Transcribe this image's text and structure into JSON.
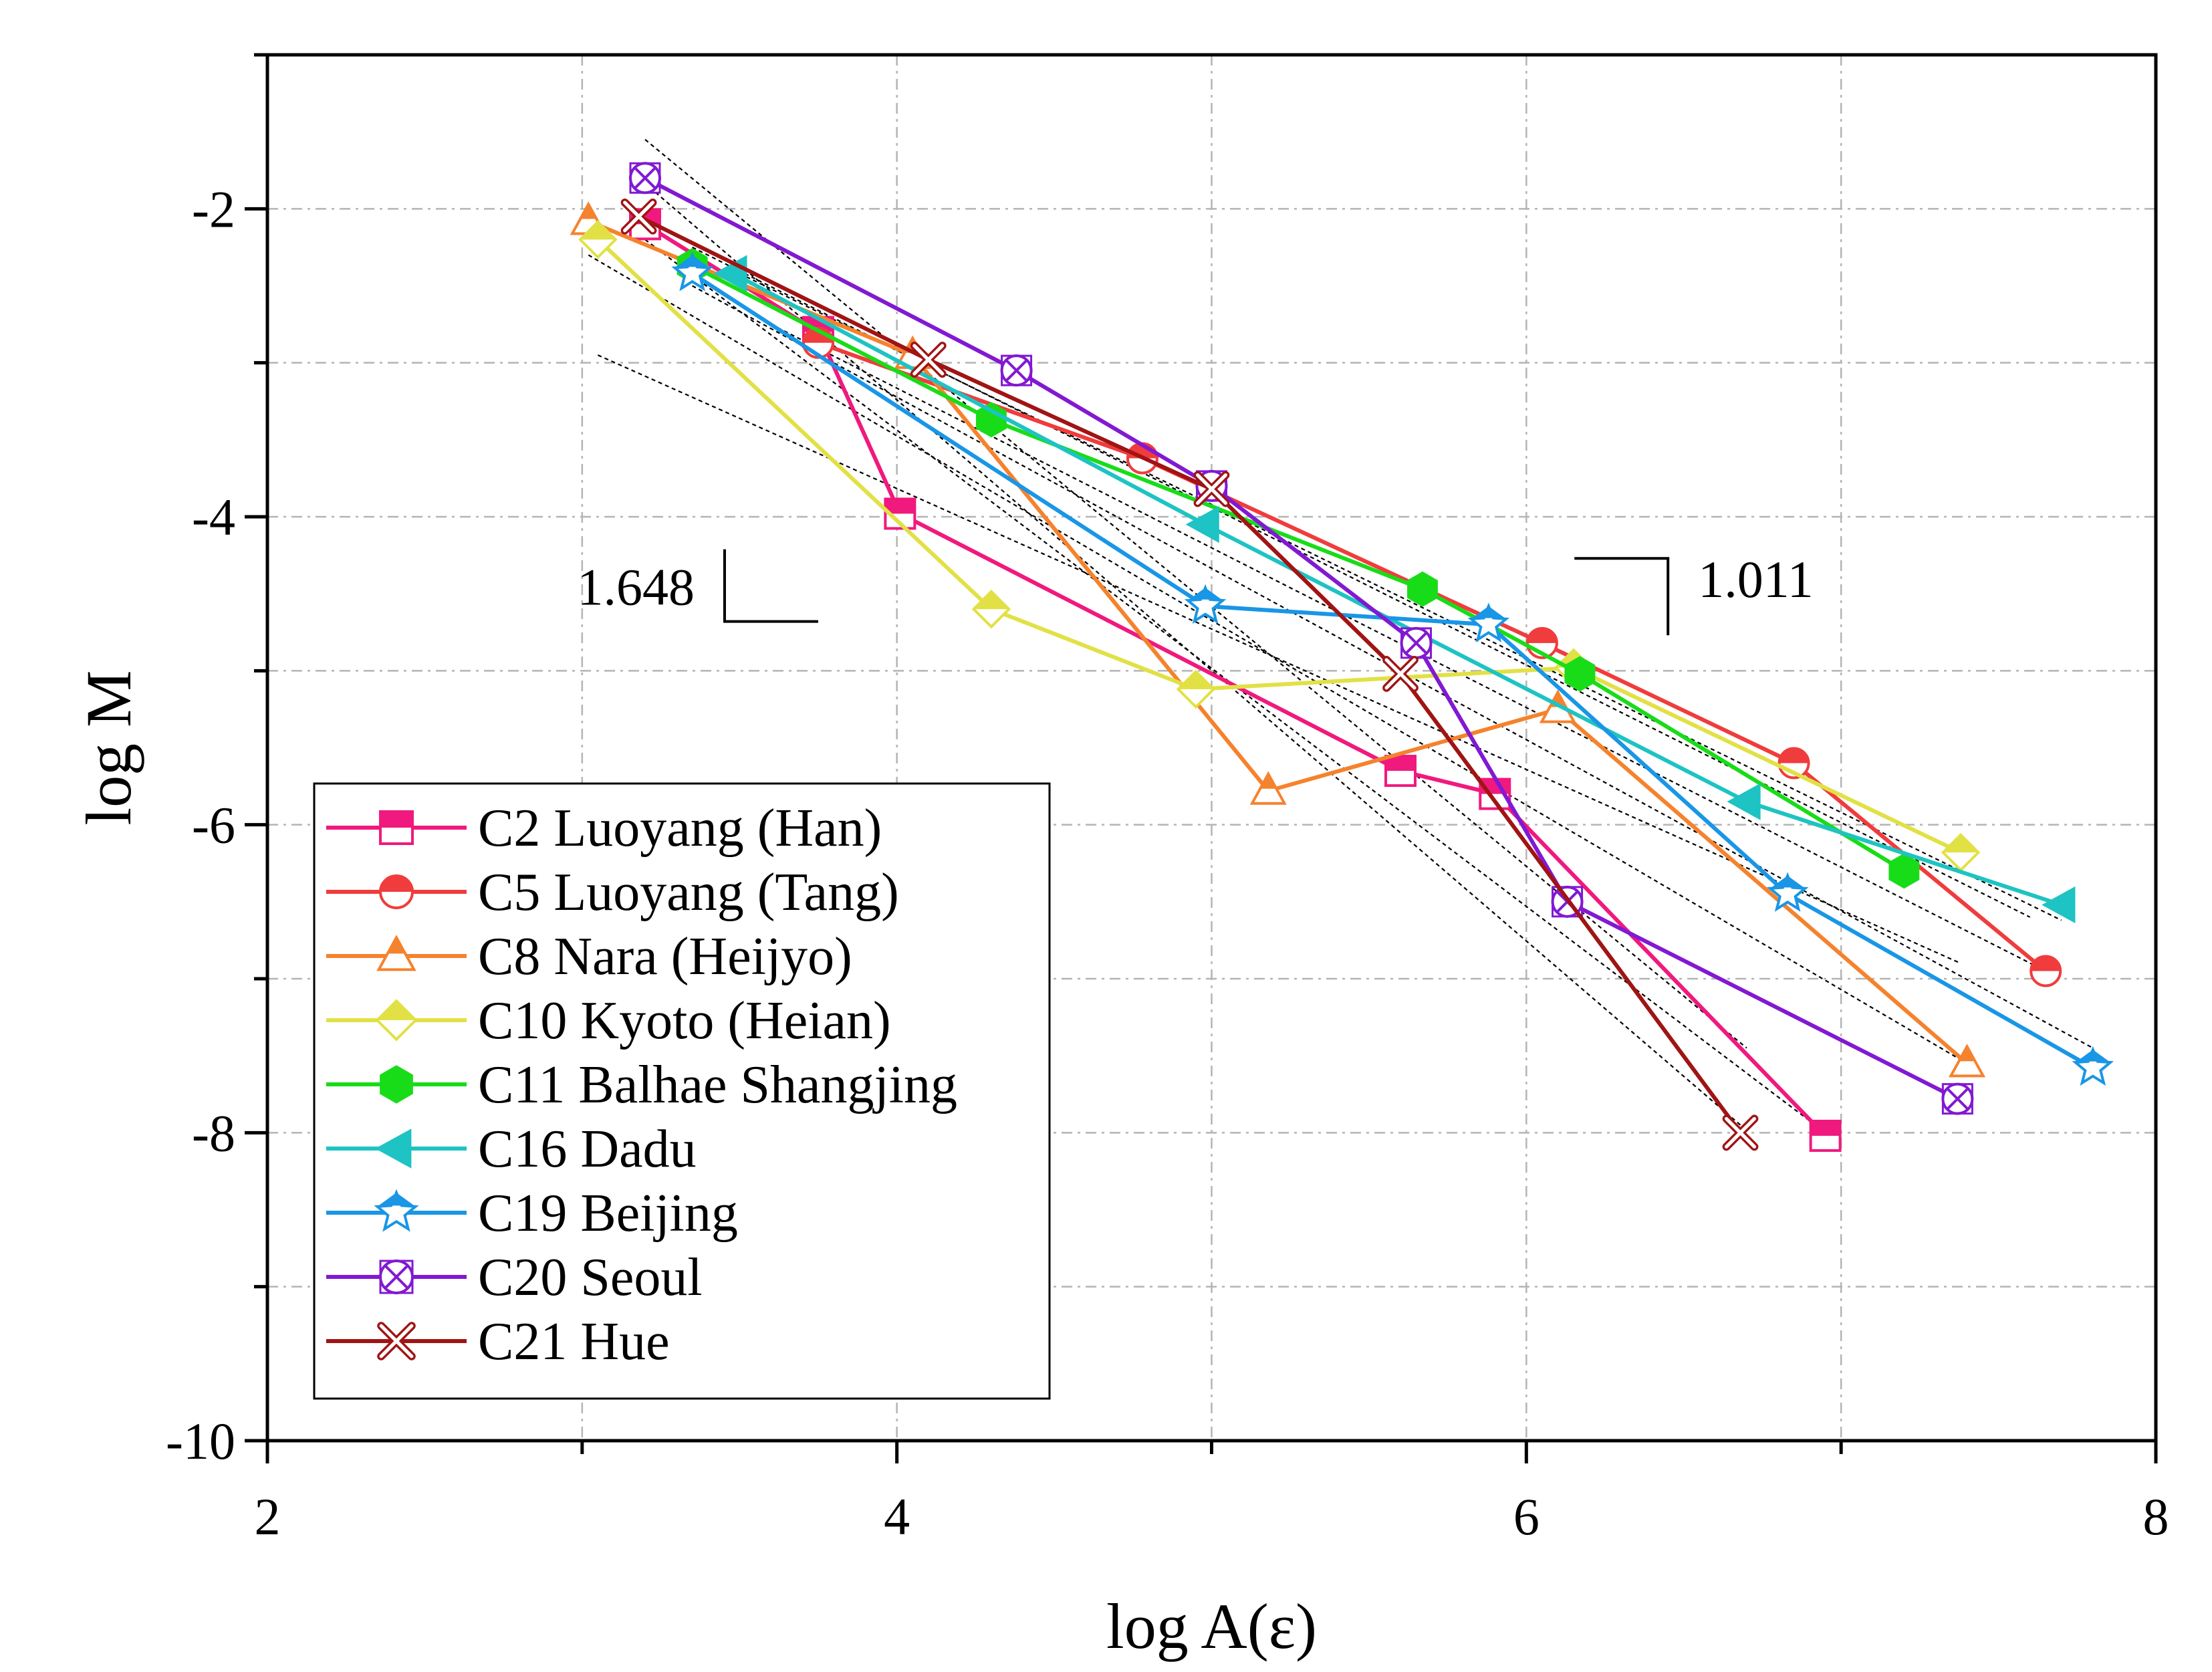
{
  "chart_data": {
    "type": "line",
    "xlabel": "log A(ε)",
    "ylabel": "log M",
    "xlim": [
      2,
      8
    ],
    "ylim": [
      -10,
      -1
    ],
    "x_ticks": [
      2,
      4,
      6,
      8
    ],
    "x_tick_labels": [
      "2",
      "4",
      "6",
      "8"
    ],
    "y_ticks": [
      -10,
      -8,
      -6,
      -4,
      -2
    ],
    "y_tick_labels": [
      "-10",
      "-8",
      "-6",
      "-4",
      "-2"
    ],
    "grid": true,
    "legend_position": "bottom-left",
    "slope_annotations": [
      {
        "label": "1.648",
        "x": 3.75,
        "y": -4.68,
        "orientation": "bottom-left"
      },
      {
        "label": "1.011",
        "x": 6.45,
        "y": -4.27,
        "orientation": "top-right"
      }
    ],
    "series": [
      {
        "name": "C2 Luoyang (Han)",
        "color": "#f0197d",
        "marker": "square",
        "x": [
          3.2,
          3.75,
          4.01,
          5.6,
          5.9,
          6.95
        ],
        "y": [
          -2.1,
          -2.8,
          -3.98,
          -5.65,
          -5.8,
          -8.02
        ],
        "fit": [
          [
            3.2,
            -2.2
          ],
          [
            6.95,
            -8.0
          ]
        ]
      },
      {
        "name": "C5 Luoyang (Tang)",
        "color": "#f03c3c",
        "marker": "circle",
        "x": [
          3.75,
          4.78,
          6.05,
          6.85,
          7.65
        ],
        "y": [
          -2.87,
          -3.62,
          -4.82,
          -5.6,
          -6.95
        ],
        "fit": [
          [
            3.6,
            -2.75
          ],
          [
            7.65,
            -6.95
          ]
        ]
      },
      {
        "name": "C8 Nara (Heijyo)",
        "color": "#f5822d",
        "marker": "triangle",
        "x": [
          3.02,
          4.05,
          5.18,
          6.1,
          7.4
        ],
        "y": [
          -2.08,
          -2.95,
          -5.78,
          -5.25,
          -7.55
        ],
        "fit": [
          [
            3.02,
            -2.3
          ],
          [
            7.4,
            -7.55
          ]
        ]
      },
      {
        "name": "C10 Kyoto (Heian)",
        "color": "#e1e146",
        "marker": "diamond",
        "x": [
          3.05,
          4.3,
          4.95,
          6.15,
          7.38
        ],
        "y": [
          -2.2,
          -4.6,
          -5.12,
          -4.98,
          -6.18
        ],
        "fit": [
          [
            3.05,
            -2.95
          ],
          [
            7.38,
            -6.9
          ]
        ]
      },
      {
        "name": "C11 Balhae Shangjing",
        "color": "#19dc19",
        "marker": "hexagon",
        "x": [
          3.35,
          4.3,
          5.67,
          6.17,
          7.2
        ],
        "y": [
          -2.37,
          -3.37,
          -4.47,
          -5.02,
          -6.3
        ],
        "fit": [
          [
            3.35,
            -2.25
          ],
          [
            7.6,
            -6.6
          ]
        ]
      },
      {
        "name": "C16 Dadu",
        "color": "#1ec3c3",
        "marker": "triangle-left",
        "x": [
          3.48,
          4.98,
          6.7,
          7.7
        ],
        "y": [
          -2.42,
          -4.05,
          -5.85,
          -6.52
        ],
        "fit": [
          [
            3.48,
            -2.4
          ],
          [
            7.7,
            -6.62
          ]
        ]
      },
      {
        "name": "C19 Beijing",
        "color": "#1996e6",
        "marker": "star",
        "x": [
          3.35,
          4.98,
          5.88,
          6.83,
          7.8
        ],
        "y": [
          -2.42,
          -4.58,
          -4.7,
          -6.45,
          -7.58
        ],
        "fit": [
          [
            3.35,
            -2.5
          ],
          [
            7.8,
            -7.45
          ]
        ]
      },
      {
        "name": "C20 Seoul",
        "color": "#8219d2",
        "marker": "circle-cross",
        "x": [
          3.2,
          4.38,
          5.0,
          5.65,
          6.13,
          7.37
        ],
        "y": [
          -1.8,
          -3.05,
          -3.8,
          -4.82,
          -6.5,
          -7.78
        ],
        "fit": [
          [
            3.2,
            -1.55
          ],
          [
            6.7,
            -7.45
          ]
        ]
      },
      {
        "name": "C21 Hue",
        "color": "#a01414",
        "marker": "x-circle",
        "x": [
          3.18,
          4.1,
          5.0,
          5.6,
          6.68
        ],
        "y": [
          -2.05,
          -2.98,
          -3.82,
          -5.02,
          -8.0
        ],
        "fit": [
          [
            3.18,
            -1.8
          ],
          [
            6.68,
            -7.95
          ]
        ]
      }
    ]
  }
}
